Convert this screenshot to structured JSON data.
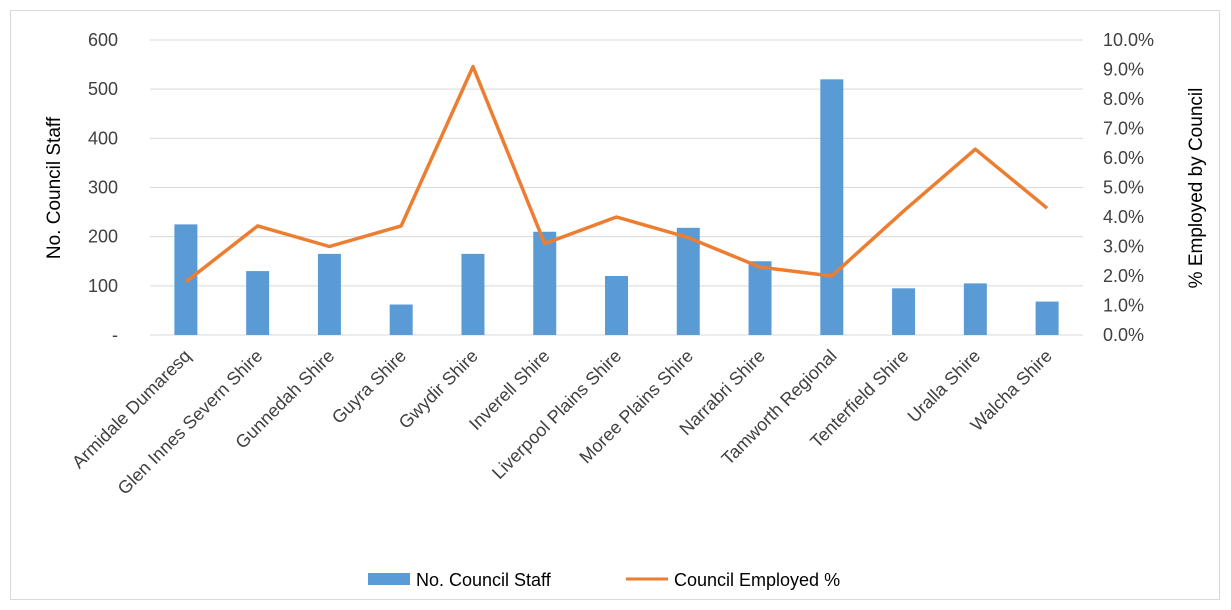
{
  "chart_data": {
    "type": "bar",
    "categories": [
      "Armidale Dumaresq",
      "Glen Innes Severn Shire",
      "Gunnedah Shire",
      "Guyra Shire",
      "Gwydir Shire",
      "Inverell Shire",
      "Liverpool Plains Shire",
      "Moree Plains Shire",
      "Narrabri Shire",
      "Tamworth Regional",
      "Tenterfield Shire",
      "Uralla Shire",
      "Walcha Shire"
    ],
    "series": [
      {
        "name": "No. Council Staff",
        "type": "bar",
        "axis": "left",
        "color": "#5B9BD5",
        "values": [
          225,
          130,
          165,
          62,
          165,
          210,
          120,
          218,
          150,
          520,
          95,
          105,
          68
        ]
      },
      {
        "name": "Council Employed %",
        "type": "line",
        "axis": "right",
        "color": "#ED7D31",
        "values": [
          0.018,
          0.037,
          0.03,
          0.037,
          0.091,
          0.031,
          0.04,
          0.033,
          0.023,
          0.02,
          0.042,
          0.063,
          0.043
        ]
      }
    ],
    "y_left": {
      "label": "No. Council Staff",
      "min": 0,
      "max": 600,
      "ticks": [
        "-",
        "100",
        "200",
        "300",
        "400",
        "500",
        "600"
      ]
    },
    "y_right": {
      "label": "% Employed by Council",
      "min": 0,
      "max": 0.1,
      "ticks": [
        "0.0%",
        "1.0%",
        "2.0%",
        "3.0%",
        "4.0%",
        "5.0%",
        "6.0%",
        "7.0%",
        "8.0%",
        "9.0%",
        "10.0%"
      ]
    },
    "grid": true,
    "legend_position": "bottom"
  }
}
